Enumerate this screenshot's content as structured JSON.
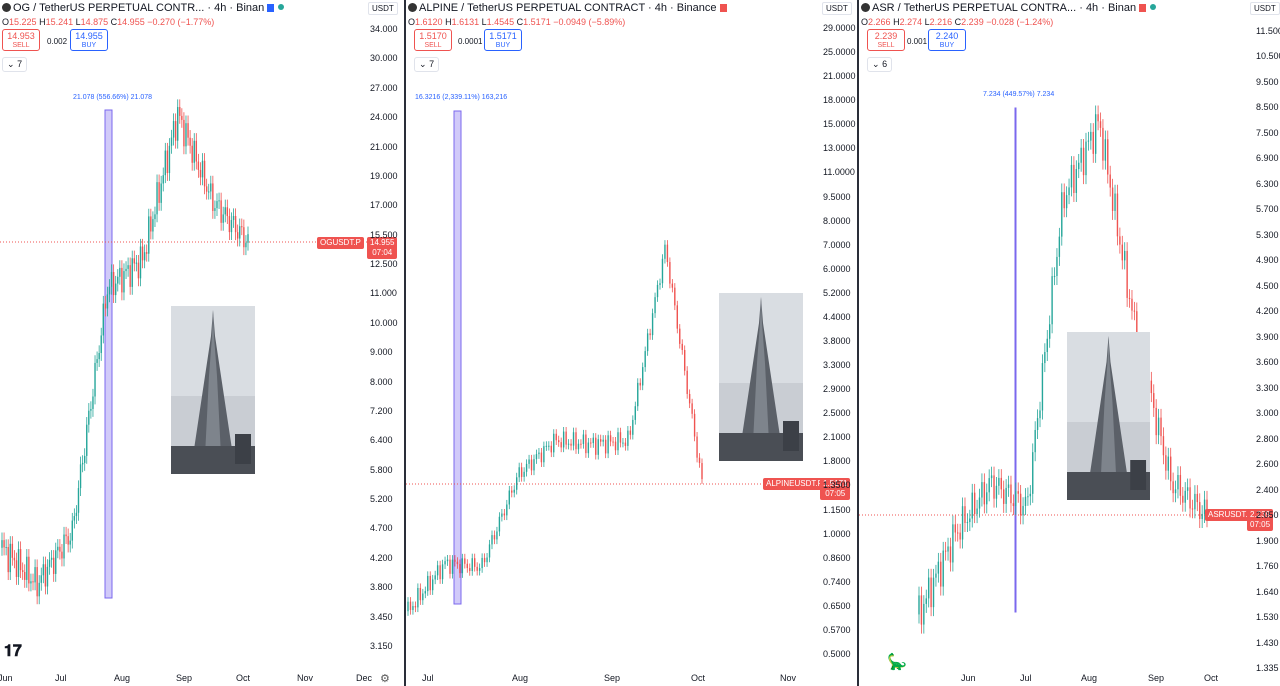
{
  "panels": [
    {
      "title": "OG / TetherUS PERPETUAL CONTR... · 4h · Binan",
      "ohlc": {
        "o": "15.225",
        "h": "15.241",
        "l": "14.875",
        "c": "14.955",
        "chg": "−0.270 (−1.77%)"
      },
      "sell": "14.953",
      "buy": "14.955",
      "spread": "0.002",
      "sell_label": "SELL",
      "buy_label": "BUY",
      "indicator_count": "7",
      "currency": "USDT",
      "measure": "21.078 (556.66%) 21.078",
      "price_symbol": "OGUSDT.P",
      "price_value": "14.955",
      "countdown": "07:04",
      "y_labels": [
        "34.000",
        "30.000",
        "27.000",
        "24.000",
        "21.000",
        "19.000",
        "17.000",
        "15.500",
        "12.500",
        "11.000",
        "10.000",
        "9.000",
        "8.000",
        "7.200",
        "6.400",
        "5.800",
        "5.200",
        "4.700",
        "4.200",
        "3.800",
        "3.450",
        "3.150"
      ],
      "x_labels": [
        "Jun",
        "Jul",
        "Aug",
        "Sep",
        "Oct",
        "Nov",
        "Dec"
      ]
    },
    {
      "title": "ALPINE / TetherUS PERPETUAL CONTRACT · 4h · Binance",
      "ohlc": {
        "o": "1.6120",
        "h": "1.6131",
        "l": "1.4545",
        "c": "1.5171",
        "chg": "−0.0949 (−5.89%)"
      },
      "sell": "1.5170",
      "buy": "1.5171",
      "spread": "0.0001",
      "sell_label": "SELL",
      "buy_label": "BUY",
      "indicator_count": "7",
      "currency": "USDT",
      "measure": "16.3216 (2,339.11%) 163,216",
      "price_symbol": "ALPINEUSDT.P",
      "price_value": "1.5171",
      "countdown": "07:05",
      "y_labels": [
        "29.0000",
        "25.0000",
        "21.0000",
        "18.0000",
        "15.0000",
        "13.0000",
        "11.0000",
        "9.5000",
        "8.0000",
        "7.0000",
        "6.0000",
        "5.2000",
        "4.4000",
        "3.8000",
        "3.3000",
        "2.9000",
        "2.5000",
        "2.1000",
        "1.8000",
        "1.3500",
        "1.1500",
        "1.0000",
        "0.8600",
        "0.7400",
        "0.6500",
        "0.5700",
        "0.5000"
      ],
      "x_labels": [
        "Jul",
        "Aug",
        "Sep",
        "Oct",
        "Nov"
      ]
    },
    {
      "title": "ASR / TetherUS PERPETUAL CONTRA... · 4h · Binan",
      "ohlc": {
        "o": "2.266",
        "h": "2.274",
        "l": "2.216",
        "c": "2.239",
        "chg": "−0.028 (−1.24%)"
      },
      "sell": "2.239",
      "buy": "2.240",
      "spread": "0.001",
      "sell_label": "SELL",
      "buy_label": "BUY",
      "indicator_count": "6",
      "currency": "USDT",
      "measure": "7.234 (449.57%) 7.234",
      "price_symbol": "ASRUSDT.P",
      "price_value": "2.239",
      "countdown": "07:05",
      "y_labels": [
        "11.500",
        "10.500",
        "9.500",
        "8.500",
        "7.500",
        "6.900",
        "6.300",
        "5.700",
        "5.300",
        "4.900",
        "4.500",
        "4.200",
        "3.900",
        "3.600",
        "3.300",
        "3.000",
        "2.800",
        "2.600",
        "2.400",
        "2.050",
        "1.900",
        "1.760",
        "1.640",
        "1.530",
        "1.430",
        "1.335"
      ],
      "x_labels": [
        "Jun",
        "Jul",
        "Aug",
        "Sep",
        "Oct"
      ]
    }
  ],
  "colors": {
    "up": "#26a69a",
    "down": "#ef5350",
    "measure": "#7b68ee",
    "accent": "#2962ff"
  },
  "chart_data": [
    {
      "type": "candlestick",
      "symbol": "OGUSDT.P",
      "interval": "4h",
      "x": [
        "Jun",
        "Jul",
        "Aug",
        "Sep",
        "Oct"
      ],
      "close_approx": [
        4.6,
        4.0,
        4.9,
        12.5,
        14.0,
        24.5,
        17.5,
        14.955
      ],
      "ylim": [
        3.15,
        34.0
      ],
      "log_scale": true
    },
    {
      "type": "candlestick",
      "symbol": "ALPINEUSDT.P",
      "interval": "4h",
      "x": [
        "Jul",
        "Aug",
        "Sep",
        "Oct"
      ],
      "close_approx": [
        0.66,
        0.9,
        0.88,
        1.6,
        2.0,
        1.95,
        2.0,
        7.0,
        1.5171
      ],
      "ylim": [
        0.5,
        29.0
      ],
      "log_scale": true
    },
    {
      "type": "candlestick",
      "symbol": "ASRUSDT.P",
      "interval": "4h",
      "x": [
        "Jun",
        "Jul",
        "Aug",
        "Sep",
        "Oct"
      ],
      "close_approx": [
        1.6,
        2.1,
        2.5,
        2.3,
        6.5,
        8.5,
        4.2,
        2.5,
        2.239
      ],
      "ylim": [
        1.335,
        11.5
      ],
      "log_scale": true
    }
  ]
}
